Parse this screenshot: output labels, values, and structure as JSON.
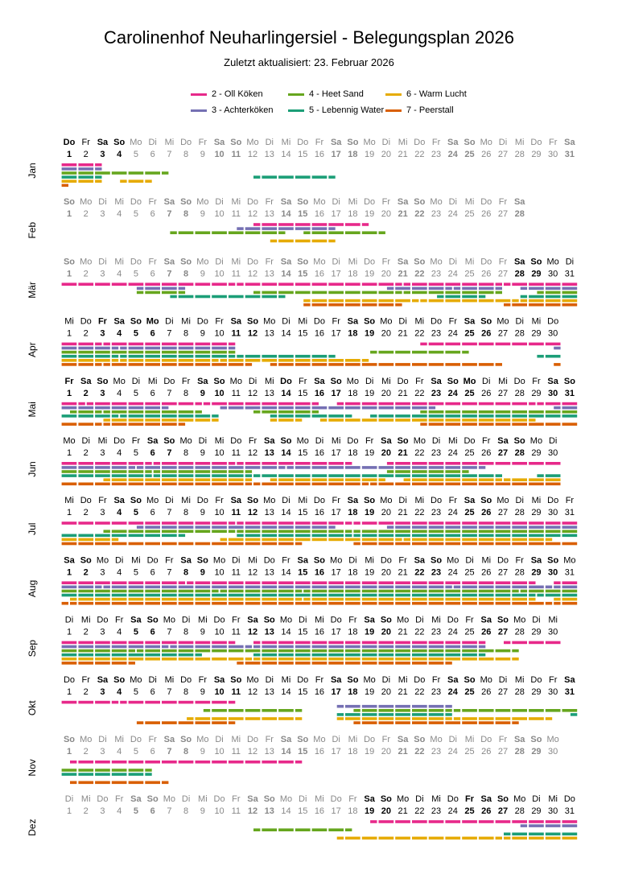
{
  "title": "Carolinenhof Neuharlingersiel - Belegungsplan 2026",
  "subtitle": "Zuletzt aktualisiert: 23. Februar 2026",
  "weekday_names": [
    "So",
    "Mo",
    "Di",
    "Mi",
    "Do",
    "Fr",
    "Sa"
  ],
  "legend": [
    {
      "id": 2,
      "label": "2 - Oll Köken",
      "color": "#e7298a"
    },
    {
      "id": 3,
      "label": "3 - Achterköken",
      "color": "#7570b3"
    },
    {
      "id": 4,
      "label": "4 - Heet Sand",
      "color": "#66a61e"
    },
    {
      "id": 5,
      "label": "5 - Lebennig Water",
      "color": "#1b9e77"
    },
    {
      "id": 6,
      "label": "6 - Warm Lucht",
      "color": "#e6ab02"
    },
    {
      "id": 7,
      "label": "7 - Peerstall",
      "color": "#d95f02"
    }
  ],
  "chart_data": {
    "type": "timeline",
    "year": 2026,
    "note": "bookings per apartment as [arrival_day, departure_day]; 0.5 / days+0.5 = continues across month edge",
    "months": [
      {
        "name": "Jan",
        "days": 31,
        "active": [
          1,
          4
        ],
        "holidays": [
          1
        ],
        "bookings": {
          "2": [
            [
              0.5,
              3
            ]
          ],
          "3": [
            [
              0.5,
              3
            ]
          ],
          "4": [
            [
              0.5,
              7
            ]
          ],
          "5": [
            [
              0.5,
              3
            ],
            [
              12,
              17
            ]
          ],
          "6": [
            [
              0.5,
              3
            ],
            [
              4,
              6
            ]
          ],
          "7": [
            [
              0.5,
              1
            ]
          ]
        }
      },
      {
        "name": "Feb",
        "days": 28,
        "active": null,
        "holidays": [],
        "bookings": {
          "2": [
            [
              12,
              19
            ]
          ],
          "3": [
            [
              11,
              17
            ]
          ],
          "4": [
            [
              7,
              14
            ],
            [
              15,
              20
            ]
          ],
          "5": [],
          "6": [
            [
              13,
              17
            ]
          ],
          "7": []
        }
      },
      {
        "name": "Mär",
        "days": 31,
        "active": [
          28,
          31
        ],
        "holidays": [],
        "bookings": {
          "2": [
            [
              0.5,
              11
            ],
            [
              11,
              21
            ],
            [
              21,
              27
            ],
            [
              27,
              31.5
            ]
          ],
          "3": [
            [
              5,
              8
            ],
            [
              20,
              24
            ],
            [
              24,
              27
            ],
            [
              28,
              31.5
            ]
          ],
          "4": [
            [
              5,
              8
            ],
            [
              12,
              21
            ],
            [
              21,
              27
            ],
            [
              29,
              31.5
            ]
          ],
          "5": [
            [
              7,
              14
            ],
            [
              23,
              26
            ],
            [
              28,
              31.5
            ]
          ],
          "6": [
            [
              15,
              22
            ],
            [
              22,
              28
            ],
            [
              28,
              31.5
            ]
          ],
          "7": [
            [
              15,
              21
            ],
            [
              27,
              31.5
            ]
          ]
        }
      },
      {
        "name": "Apr",
        "days": 30,
        "active": [
          1,
          30
        ],
        "holidays": [
          3,
          6
        ],
        "bookings": {
          "2": [
            [
              0.5,
              3
            ],
            [
              3,
              11
            ],
            [
              22,
              30.5
            ]
          ],
          "3": [
            [
              0.5,
              4
            ],
            [
              4,
              11
            ],
            [
              30,
              30.5
            ]
          ],
          "4": [
            [
              0.5,
              11
            ],
            [
              19,
              25
            ]
          ],
          "5": [
            [
              0.5,
              4
            ],
            [
              4,
              11
            ],
            [
              11,
              17
            ],
            [
              29,
              30.5
            ]
          ],
          "6": [
            [
              0.5,
              4
            ],
            [
              4,
              10
            ],
            [
              10,
              19
            ]
          ],
          "7": [
            [
              0.5,
              3
            ],
            [
              3,
              12
            ],
            [
              13,
              27
            ],
            [
              30,
              30.5
            ]
          ]
        }
      },
      {
        "name": "Mai",
        "days": 31,
        "active": [
          1,
          31
        ],
        "holidays": [
          1,
          14,
          25
        ],
        "bookings": {
          "2": [
            [
              0.5,
              2
            ],
            [
              2,
              9
            ],
            [
              9,
              16
            ],
            [
              17,
              29
            ],
            [
              29,
              31.5
            ]
          ],
          "3": [
            [
              0.5,
              7
            ],
            [
              10,
              23
            ],
            [
              30,
              31.5
            ]
          ],
          "4": [
            [
              1,
              3
            ],
            [
              3,
              9
            ],
            [
              12,
              16
            ],
            [
              22,
              31.5
            ]
          ],
          "5": [
            [
              0.5,
              4
            ],
            [
              4,
              10
            ],
            [
              13,
              18
            ],
            [
              19,
              31.5
            ]
          ],
          "6": [
            [
              3,
              10
            ],
            [
              13,
              15
            ],
            [
              16,
              29
            ]
          ],
          "7": [
            [
              0.5,
              3
            ],
            [
              3,
              8
            ],
            [
              22,
              31.5
            ]
          ]
        }
      },
      {
        "name": "Jun",
        "days": 30,
        "active": [
          1,
          30
        ],
        "holidays": [],
        "bookings": {
          "2": [
            [
              0.5,
              6
            ],
            [
              6,
              11
            ],
            [
              11,
              18
            ],
            [
              20,
              30.5
            ]
          ],
          "3": [
            [
              0.5,
              5
            ],
            [
              5,
              14
            ],
            [
              14,
              26
            ]
          ],
          "4": [
            [
              0.5,
              6
            ],
            [
              6,
              12
            ],
            [
              20,
              25
            ]
          ],
          "5": [
            [
              0.5,
              6
            ],
            [
              6,
              12
            ],
            [
              12,
              27
            ],
            [
              29,
              30.5
            ]
          ],
          "6": [
            [
              3,
              12
            ],
            [
              13,
              20
            ],
            [
              21,
              27
            ],
            [
              27,
              30.5
            ]
          ],
          "7": [
            [
              0.5,
              12
            ],
            [
              12,
              19
            ],
            [
              19,
              30.5
            ]
          ]
        }
      },
      {
        "name": "Jul",
        "days": 31,
        "active": [
          1,
          31
        ],
        "holidays": [],
        "bookings": {
          "2": [
            [
              0.5,
              11
            ],
            [
              11,
              18
            ],
            [
              18,
              31.5
            ]
          ],
          "3": [
            [
              5,
              17
            ],
            [
              20,
              31.5
            ]
          ],
          "4": [
            [
              3,
              11
            ],
            [
              11,
              18
            ],
            [
              18,
              31.5
            ]
          ],
          "5": [
            [
              0.5,
              8
            ],
            [
              11,
              18
            ],
            [
              18,
              31.5
            ]
          ],
          "6": [
            [
              0.5,
              4
            ],
            [
              10,
              21
            ],
            [
              21,
              30
            ]
          ],
          "7": [
            [
              0.5,
              15
            ],
            [
              18,
              31.5
            ]
          ]
        }
      },
      {
        "name": "Aug",
        "days": 31,
        "active": [
          1,
          31
        ],
        "holidays": [],
        "bookings": {
          "2": [
            [
              0.5,
              8
            ],
            [
              8,
              29
            ],
            [
              30,
              31.5
            ]
          ],
          "3": [
            [
              0.5,
              3
            ],
            [
              3,
              24
            ],
            [
              24,
              30
            ],
            [
              30,
              31.5
            ]
          ],
          "4": [
            [
              0.5,
              10
            ],
            [
              10,
              15
            ],
            [
              15,
              28
            ],
            [
              28,
              31.5
            ]
          ],
          "5": [
            [
              0.5,
              29
            ],
            [
              29,
              31.5
            ]
          ],
          "6": [
            [
              1,
              15
            ],
            [
              15,
              29
            ],
            [
              30,
              31.5
            ]
          ],
          "7": [
            [
              0.5,
              1
            ],
            [
              1,
              30
            ],
            [
              30,
              31.5
            ]
          ]
        }
      },
      {
        "name": "Sep",
        "days": 30,
        "active": [
          1,
          30
        ],
        "holidays": [],
        "bookings": {
          "2": [
            [
              0.5,
              11
            ],
            [
              12,
              26
            ],
            [
              27,
              30.5
            ]
          ],
          "3": [
            [
              0.5,
              7
            ],
            [
              7,
              12
            ],
            [
              12,
              26
            ]
          ],
          "4": [
            [
              0.5,
              5
            ],
            [
              5,
              28
            ]
          ],
          "5": [
            [
              0.5,
              9
            ],
            [
              12,
              26
            ]
          ],
          "6": [
            [
              0.5,
              12
            ],
            [
              12,
              28
            ]
          ],
          "7": [
            [
              0.5,
              5
            ],
            [
              11,
              24
            ]
          ]
        }
      },
      {
        "name": "Okt",
        "days": 31,
        "active": [
          1,
          31
        ],
        "holidays": [
          3
        ],
        "bookings": {
          "2": [
            [
              0.5,
              4
            ],
            [
              4,
              11
            ]
          ],
          "3": [
            [
              17,
              24
            ]
          ],
          "4": [
            [
              9,
              15
            ],
            [
              18,
              24
            ],
            [
              24,
              31.5
            ]
          ],
          "5": [
            [
              17,
              24
            ],
            [
              31,
              31.5
            ]
          ],
          "6": [
            [
              8,
              15
            ],
            [
              17,
              24
            ],
            [
              24,
              30
            ]
          ],
          "7": [
            [
              5,
              11
            ],
            [
              18,
              28
            ]
          ]
        }
      },
      {
        "name": "Nov",
        "days": 30,
        "active": null,
        "holidays": [],
        "bookings": {
          "2": [
            [
              1,
              15
            ]
          ],
          "3": [],
          "4": [
            [
              0.5,
              6
            ]
          ],
          "5": [
            [
              0.5,
              6
            ]
          ],
          "6": [],
          "7": [
            [
              1,
              7
            ]
          ]
        }
      },
      {
        "name": "Dez",
        "days": 31,
        "active": [
          19,
          31
        ],
        "holidays": [
          25
        ],
        "bookings": {
          "2": [
            [
              19,
              31.5
            ]
          ],
          "3": [
            [
              28,
              31.5
            ]
          ],
          "4": [
            [
              12,
              18
            ]
          ],
          "5": [
            [
              27,
              31.5
            ]
          ],
          "6": [
            [
              17,
              27
            ],
            [
              27,
              31.5
            ]
          ],
          "7": []
        }
      }
    ]
  }
}
